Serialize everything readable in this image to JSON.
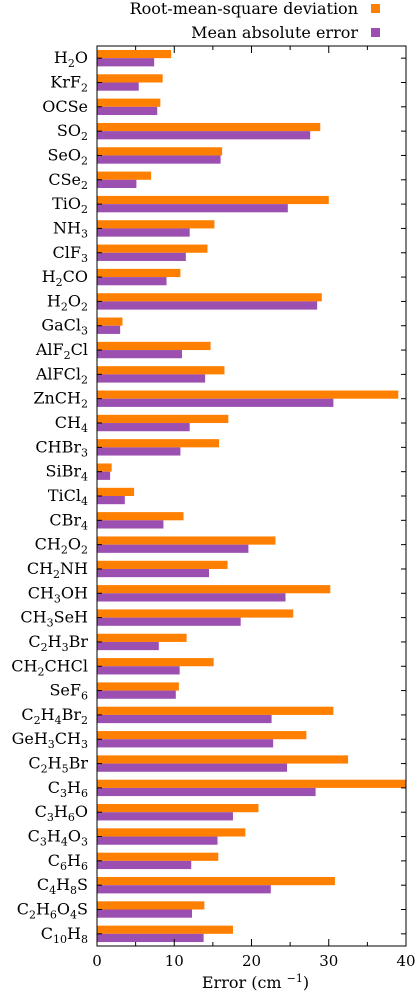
{
  "chart_data": {
    "type": "bar",
    "orientation": "horizontal",
    "categories": [
      "H2O",
      "KrF2",
      "OCSe",
      "SO2",
      "SeO2",
      "CSe2",
      "TiO2",
      "NH3",
      "ClF3",
      "H2CO",
      "H2O2",
      "GaCl3",
      "AlF2Cl",
      "AlFCl2",
      "ZnCH2",
      "CH4",
      "CHBr3",
      "SiBr4",
      "TiCl4",
      "CBr4",
      "CH2O2",
      "CH2NH",
      "CH3OH",
      "CH3SeH",
      "C2H3Br",
      "CH2CHCl",
      "SeF6",
      "C2H4Br2",
      "GeH3CH3",
      "C2H5Br",
      "C3H6",
      "C3H6O",
      "C3H4O3",
      "C6H6",
      "C4H8S",
      "C2H6O4S",
      "C10H8"
    ],
    "series": [
      {
        "name": "Root-mean-square deviation",
        "color": "#ff7f00",
        "values": [
          9.6,
          8.5,
          8.2,
          28.9,
          16.2,
          7.0,
          30.0,
          15.2,
          14.3,
          10.8,
          29.1,
          3.3,
          14.7,
          16.5,
          39.0,
          17.0,
          15.8,
          1.9,
          4.8,
          11.2,
          23.1,
          16.9,
          30.2,
          25.4,
          11.6,
          15.1,
          10.6,
          30.6,
          27.1,
          32.5,
          40.0,
          20.9,
          19.2,
          15.7,
          30.8,
          13.9,
          17.6
        ]
      },
      {
        "name": "Mean absolute error",
        "color": "#9b4fb0",
        "values": [
          7.4,
          5.4,
          7.8,
          27.6,
          16.0,
          5.1,
          24.7,
          12.0,
          11.5,
          9.0,
          28.5,
          3.0,
          11.0,
          14.0,
          30.6,
          12.0,
          10.8,
          1.7,
          3.6,
          8.6,
          19.6,
          14.5,
          24.4,
          18.6,
          8.0,
          10.7,
          10.2,
          22.6,
          22.8,
          24.6,
          28.3,
          17.6,
          15.6,
          12.2,
          22.5,
          12.3,
          13.8
        ]
      }
    ],
    "xlim": [
      0,
      40
    ],
    "xticks": [
      0,
      10,
      20,
      30,
      40
    ],
    "xlabel": "Error (cm",
    "xlabel_sup": "−1",
    "xlabel_close": ")",
    "legend_position": "top-right",
    "grid": false
  }
}
